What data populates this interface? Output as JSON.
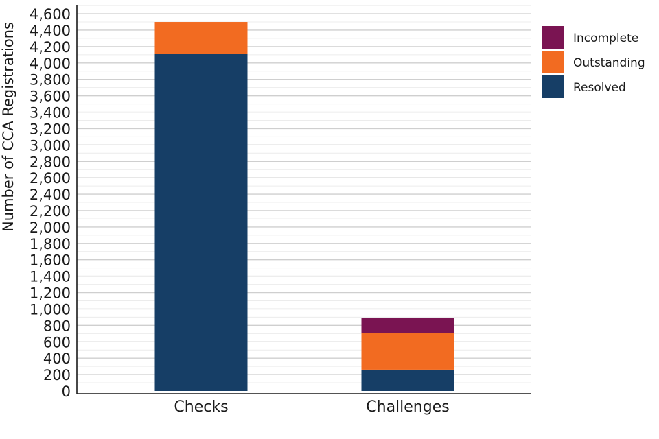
{
  "chart_data": {
    "type": "bar",
    "stacked": true,
    "categories": [
      "Checks",
      "Challenges"
    ],
    "series": [
      {
        "name": "Resolved",
        "values": [
          4110,
          260
        ],
        "color": "#163e66"
      },
      {
        "name": "Outstanding",
        "values": [
          390,
          445
        ],
        "color": "#f26b21"
      },
      {
        "name": "Incomplete",
        "values": [
          0,
          190
        ],
        "color": "#7a1452"
      }
    ],
    "ylabel": "Number of CCA Registrations",
    "xlabel": "",
    "title": "",
    "ylim": [
      0,
      4700
    ],
    "yticks": [
      0,
      200,
      400,
      600,
      800,
      1000,
      1200,
      1400,
      1600,
      1800,
      2000,
      2200,
      2400,
      2600,
      2800,
      3000,
      3200,
      3400,
      3600,
      3800,
      4000,
      4200,
      4400,
      4600
    ],
    "ytick_labels": [
      "0",
      "200",
      "400",
      "600",
      "800",
      "1,000",
      "1,200",
      "1,400",
      "1,600",
      "1,800",
      "2,000",
      "2,200",
      "2,400",
      "2,600",
      "2,800",
      "3,000",
      "3,200",
      "3,400",
      "3,600",
      "3,800",
      "4,000",
      "4,200",
      "4,400",
      "4,600"
    ],
    "minor_gridlines": [
      100,
      300,
      500,
      700,
      900,
      1100,
      1300,
      1500,
      1700,
      1900,
      2100,
      2300,
      2500,
      2700,
      2900,
      3100,
      3300,
      3500,
      3700,
      3900,
      4100,
      4300,
      4500,
      4700
    ],
    "legend": {
      "position": "right",
      "order": [
        "Incomplete",
        "Outstanding",
        "Resolved"
      ]
    },
    "grid": true
  }
}
